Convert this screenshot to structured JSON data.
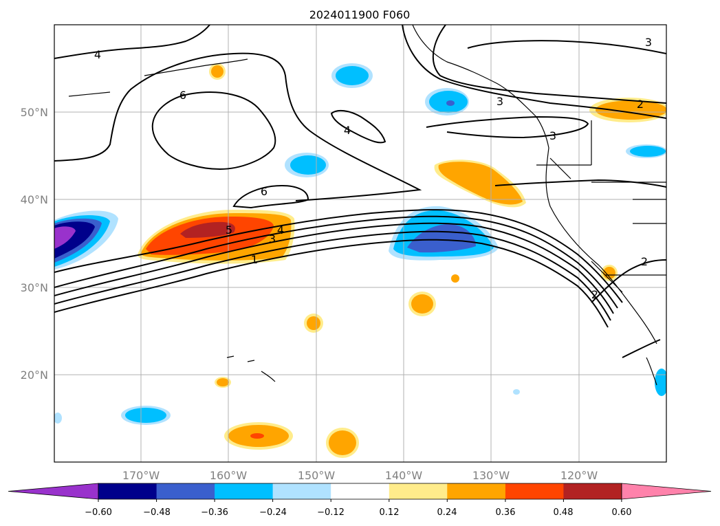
{
  "title": "2024011900 F060",
  "map": {
    "lat_ticks": [
      "20°N",
      "30°N",
      "40°N",
      "50°N"
    ],
    "lon_ticks": [
      "170°W",
      "160°W",
      "150°W",
      "140°W",
      "130°W",
      "120°W"
    ],
    "contour_labels": [
      "4",
      "6",
      "4",
      "6",
      "5",
      "4",
      "3",
      "1",
      "3",
      "3",
      "2",
      "2",
      "2",
      "3"
    ],
    "colors": {
      "gridline": "#b0b0b0",
      "contour": "#000000",
      "coastline": "#000000"
    }
  },
  "colorbar": {
    "tick_labels": [
      "−0.60",
      "−0.48",
      "−0.36",
      "−0.24",
      "−0.12",
      "0.12",
      "0.24",
      "0.36",
      "0.48",
      "0.60"
    ],
    "colors": [
      "#9932cc",
      "#00008b",
      "#3a5fcd",
      "#00bfff",
      "#b0e2ff",
      "#ffffff",
      "#ffec8b",
      "#ffa500",
      "#ff4500",
      "#b22222",
      "#ff82ab"
    ]
  }
}
